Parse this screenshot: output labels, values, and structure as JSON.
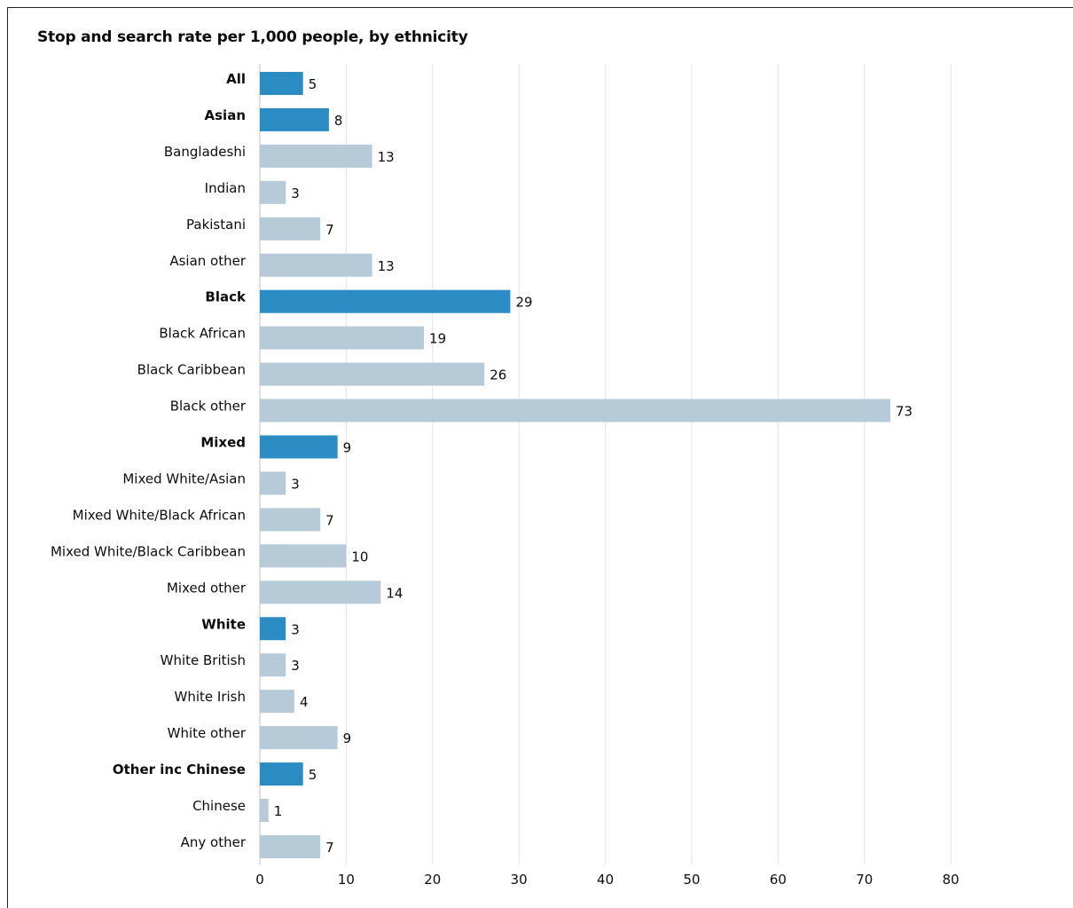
{
  "chart_data": {
    "type": "bar",
    "orientation": "horizontal",
    "title": "Stop and search rate per 1,000 people, by ethnicity",
    "xlabel": "",
    "ylabel": "",
    "xlim": [
      0,
      80
    ],
    "ticks": [
      0,
      10,
      20,
      30,
      40,
      50,
      60,
      70,
      80
    ],
    "grid": true,
    "colors": {
      "primary": "#2b8cc4",
      "secondary": "#b7cad8",
      "grid": "#e3e3e3"
    },
    "categories": [
      "All",
      "Asian",
      "Bangladeshi",
      "Indian",
      "Pakistani",
      "Asian other",
      "Black",
      "Black African",
      "Black Caribbean",
      "Black other",
      "Mixed",
      "Mixed White/Asian",
      "Mixed White/Black African",
      "Mixed White/Black Caribbean",
      "Mixed other",
      "White",
      "White British",
      "White Irish",
      "White other",
      "Other inc Chinese",
      "Chinese",
      "Any other"
    ],
    "values": [
      5,
      8,
      13,
      3,
      7,
      13,
      29,
      19,
      26,
      73,
      9,
      3,
      7,
      10,
      14,
      3,
      3,
      4,
      9,
      5,
      1,
      7
    ],
    "primary_categories": [
      "All",
      "Asian",
      "Black",
      "Mixed",
      "White",
      "Other inc Chinese"
    ]
  }
}
